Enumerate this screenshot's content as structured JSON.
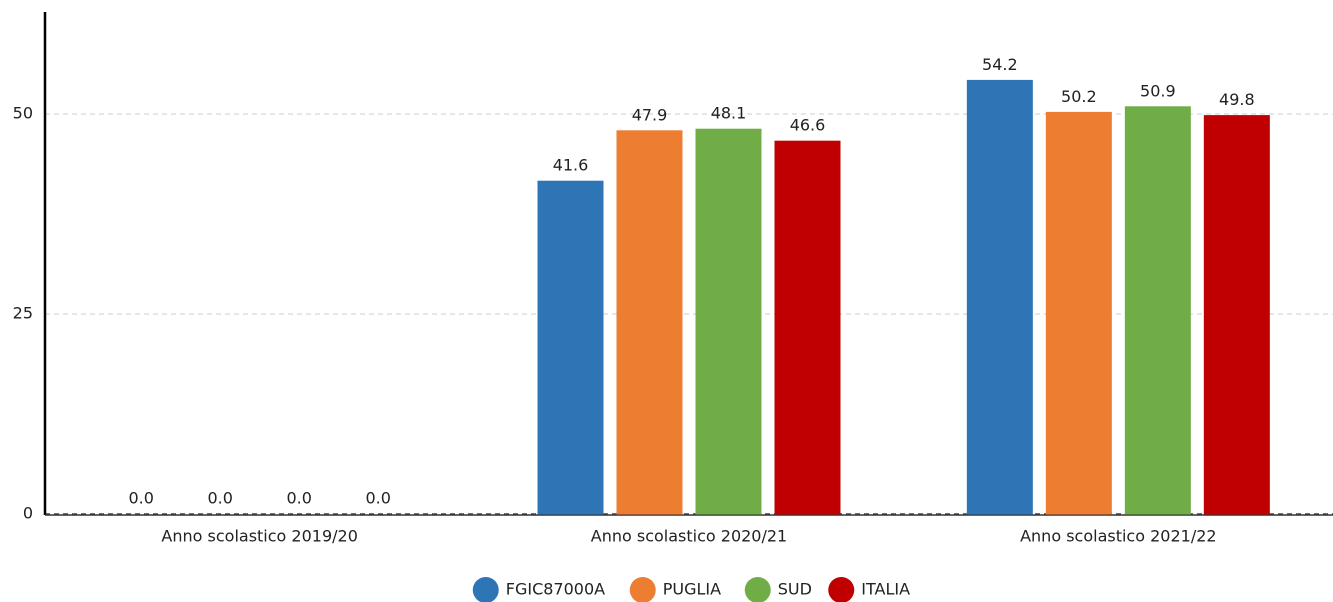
{
  "chart_data": {
    "type": "bar",
    "categories": [
      "Anno scolastico 2019/20",
      "Anno scolastico 2020/21",
      "Anno scolastico 2021/22"
    ],
    "series": [
      {
        "name": "FGIC87000A",
        "color": "#2e75b6",
        "values": [
          0,
          41.6,
          54.2
        ],
        "value_labels": [
          "0.0",
          "41.6",
          "54.2"
        ]
      },
      {
        "name": "PUGLIA",
        "color": "#ed7d31",
        "values": [
          0,
          47.9,
          50.2
        ],
        "value_labels": [
          "0.0",
          "47.9",
          "50.2"
        ]
      },
      {
        "name": "SUD",
        "color": "#70ad47",
        "values": [
          0,
          48.1,
          50.9
        ],
        "value_labels": [
          "0.0",
          "48.1",
          "50.9"
        ]
      },
      {
        "name": "ITALIA",
        "color": "#c00000",
        "values": [
          0,
          46.6,
          49.8
        ],
        "value_labels": [
          "0.0",
          "46.6",
          "49.8"
        ]
      }
    ],
    "ylim": [
      0,
      62.75
    ],
    "yticks": [
      0,
      25,
      50
    ],
    "grid": true,
    "legend": "bottom"
  }
}
